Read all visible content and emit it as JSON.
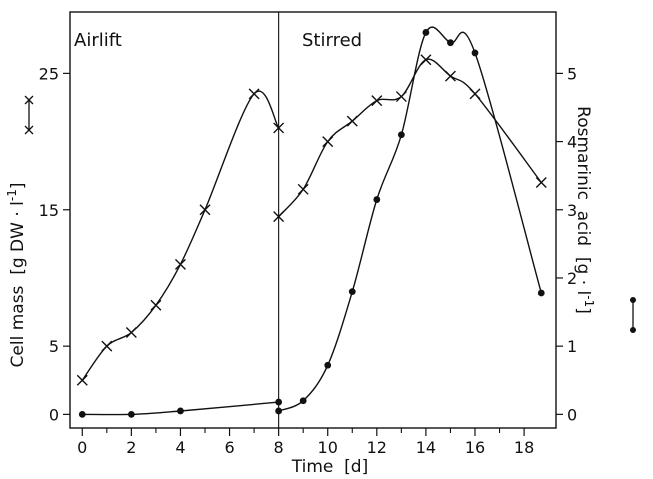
{
  "chart_data": {
    "type": "line",
    "xlabel": "Time  [d]",
    "ylabel_left": "Cell mass  [g DW · l",
    "ylabel_left_sup": "-1",
    "ylabel_left_end": "]",
    "ylabel_right": "Rosmarinic  acid  [g · l",
    "ylabel_right_sup": "-1",
    "ylabel_right_end": "]",
    "xlim": [
      -0.5,
      19.3
    ],
    "ylim_left": [
      -1,
      29.5
    ],
    "ylim_right": [
      -0.2,
      5.9
    ],
    "x_ticks": [
      0,
      2,
      4,
      6,
      8,
      10,
      12,
      14,
      16,
      18
    ],
    "y_left_ticks": [
      0,
      5,
      15,
      25
    ],
    "y_right_ticks": [
      0,
      1,
      2,
      3,
      4,
      5
    ],
    "phase_divider_x": 8,
    "phases": [
      {
        "label": "Airlift"
      },
      {
        "label": "Stirred"
      }
    ],
    "series": [
      {
        "marker": "x",
        "axis": "left",
        "points": [
          [
            0,
            2.5
          ],
          [
            1,
            5
          ],
          [
            2,
            6
          ],
          [
            3,
            8
          ],
          [
            4,
            11
          ],
          [
            5,
            15
          ],
          [
            7,
            23.5
          ],
          [
            8,
            21
          ],
          [
            8,
            14.5
          ],
          [
            9,
            16.5
          ],
          [
            10,
            20
          ],
          [
            11,
            21.5
          ],
          [
            12,
            23
          ],
          [
            13,
            23.3
          ],
          [
            14,
            26
          ],
          [
            15,
            24.8
          ],
          [
            16,
            23.5
          ],
          [
            18.7,
            17
          ]
        ]
      },
      {
        "marker": "dot",
        "axis": "right",
        "points": [
          [
            0,
            0
          ],
          [
            2,
            0
          ],
          [
            4,
            0.05
          ],
          [
            8,
            0.18
          ],
          [
            8,
            0.05
          ],
          [
            9,
            0.2
          ],
          [
            10,
            0.72
          ],
          [
            11,
            1.8
          ],
          [
            12,
            3.15
          ],
          [
            13,
            4.1
          ],
          [
            14,
            5.6
          ],
          [
            15,
            5.45
          ],
          [
            16,
            5.3
          ],
          [
            18.7,
            1.78
          ]
        ]
      }
    ],
    "legend_markers": [
      "x",
      "dot"
    ]
  }
}
